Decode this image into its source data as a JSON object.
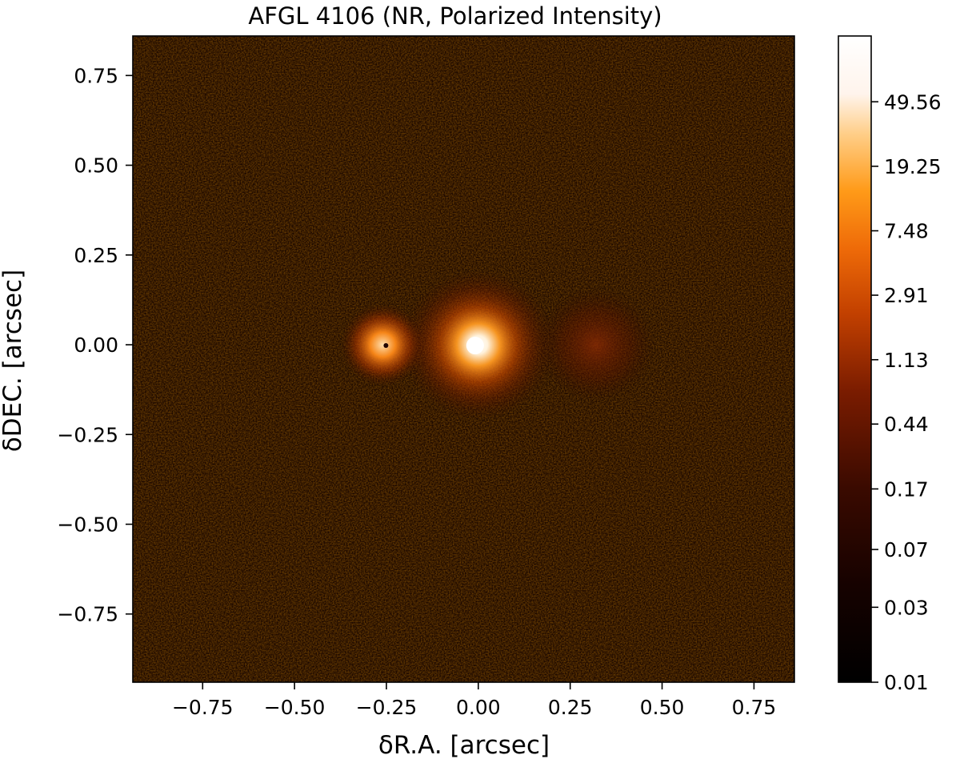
{
  "chart_data": {
    "type": "heatmap",
    "title": "AFGL 4106 (NR, Polarized Intensity)",
    "xlabel": "δR.A. [arcsec]",
    "ylabel": "δDEC. [arcsec]",
    "xlim": [
      -0.94,
      0.86
    ],
    "ylim": [
      -0.94,
      0.86
    ],
    "x_ticks": [
      -0.75,
      -0.5,
      -0.25,
      0.0,
      0.25,
      0.5,
      0.75
    ],
    "x_tick_labels": [
      "−0.75",
      "−0.50",
      "−0.25",
      "0.00",
      "0.25",
      "0.50",
      "0.75"
    ],
    "y_ticks": [
      0.75,
      0.5,
      0.25,
      0.0,
      -0.25,
      -0.5,
      -0.75
    ],
    "y_tick_labels": [
      "0.75",
      "0.50",
      "0.25",
      "0.00",
      "−0.25",
      "−0.50",
      "−0.75"
    ],
    "grid": false,
    "colormap": "gist_heat",
    "colorbar": {
      "scale": "log",
      "range": [
        0.01,
        130
      ],
      "tick_values": [
        49.56,
        19.25,
        7.48,
        2.91,
        1.13,
        0.44,
        0.17,
        0.07,
        0.03,
        0.01
      ],
      "tick_labels": [
        "49.56",
        "19.25",
        "7.48",
        "2.91",
        "1.13",
        "0.44",
        "0.17",
        "0.07",
        "0.03",
        "0.01"
      ]
    },
    "features": [
      {
        "x": 0.0,
        "y": 0.0,
        "peak": 130,
        "sigma_arcsec": 0.05
      },
      {
        "x": -0.26,
        "y": 0.0,
        "peak": 8,
        "sigma_arcsec": 0.025
      },
      {
        "x": 0.32,
        "y": 0.0,
        "peak": 0.8,
        "sigma_arcsec": 0.05
      }
    ],
    "background_level": 0.2
  }
}
